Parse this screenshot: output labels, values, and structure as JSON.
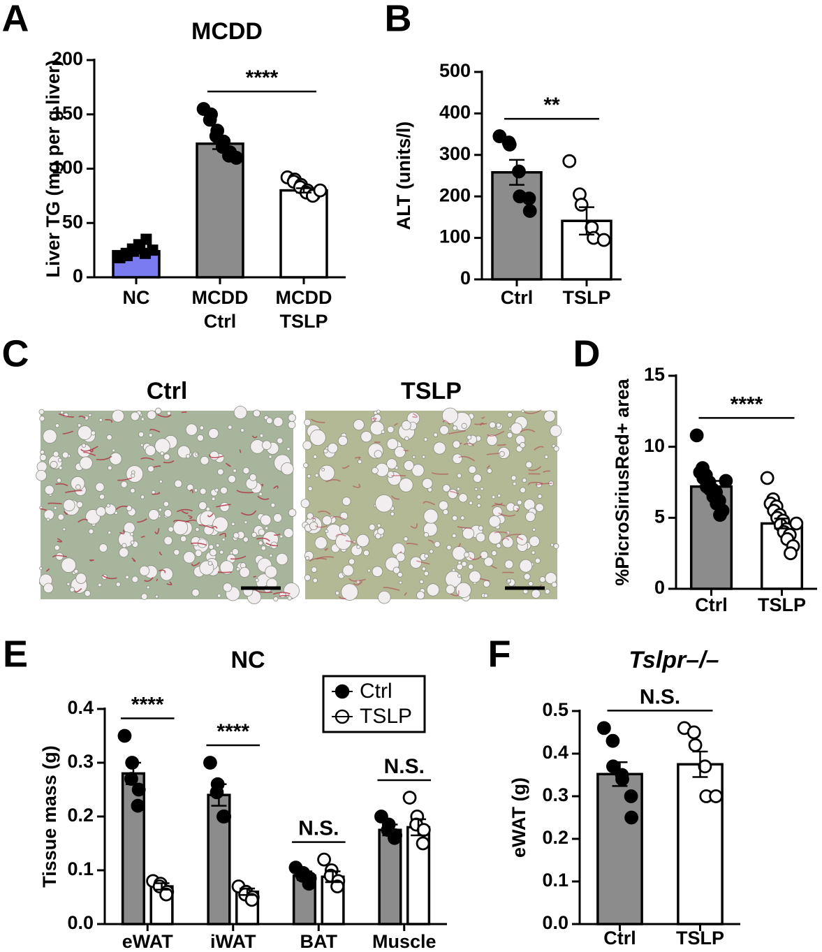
{
  "chart_data": [
    {
      "type": "bar",
      "panel_label": "A",
      "title": "MCDD",
      "y_label": "Liver TG (mg per g liver)",
      "categories": [
        "NC",
        "MCDD\nCtrl",
        "MCDD\nTSLP"
      ],
      "ylim": [
        0,
        200
      ],
      "yticks": [
        0,
        50,
        100,
        150,
        200
      ],
      "series": [
        {
          "colors": [
            "#7b7bf0",
            "#8c8c8c",
            "#ffffff"
          ],
          "markers": [
            "square",
            "filled",
            "open"
          ],
          "values": [
            24,
            123,
            80
          ],
          "errors": [
            2,
            5,
            2
          ],
          "points": [
            [
              18,
              20,
              22,
              24,
              26,
              28,
              30,
              35,
              22,
              25
            ],
            [
              155,
              150,
              145,
              135,
              130,
              125,
              120,
              115,
              112,
              110
            ],
            [
              92,
              90,
              88,
              85,
              83,
              80,
              78,
              76,
              75,
              80
            ]
          ]
        }
      ],
      "annotations": [
        {
          "text": "****",
          "categories": [
            1,
            2
          ]
        }
      ]
    },
    {
      "type": "bar",
      "panel_label": "B",
      "y_label": "ALT (units/l)",
      "categories": [
        "Ctrl",
        "TSLP"
      ],
      "ylim": [
        0,
        500
      ],
      "yticks": [
        0,
        100,
        200,
        300,
        400,
        500
      ],
      "series": [
        {
          "colors": [
            "#8c8c8c",
            "#ffffff"
          ],
          "markers": [
            "filled",
            "open"
          ],
          "values": [
            258,
            141
          ],
          "errors": [
            30,
            33
          ],
          "points": [
            [
              345,
              330,
              325,
              260,
              200,
              195,
              165
            ],
            [
              285,
              205,
              180,
              125,
              100,
              95
            ]
          ]
        }
      ],
      "annotations": [
        {
          "text": "**",
          "categories": [
            0,
            1
          ]
        }
      ]
    },
    {
      "type": "image",
      "panel_label": "C",
      "image_titles": [
        "Ctrl",
        "TSLP"
      ]
    },
    {
      "type": "bar",
      "panel_label": "D",
      "y_label": "%PicroSiriusRed+ area",
      "categories": [
        "Ctrl",
        "TSLP"
      ],
      "ylim": [
        0,
        15
      ],
      "yticks": [
        0,
        5,
        10,
        15
      ],
      "series": [
        {
          "colors": [
            "#8c8c8c",
            "#ffffff"
          ],
          "markers": [
            "filled",
            "open"
          ],
          "values": [
            7.2,
            4.6
          ],
          "errors": [
            0.4,
            0.35
          ],
          "points": [
            [
              10.8,
              8.5,
              8.2,
              8,
              7.8,
              7.5,
              7.2,
              7,
              7,
              6.8,
              6.5,
              6.2,
              6,
              5.5,
              5.2,
              7.6
            ],
            [
              7.8,
              6.3,
              6,
              5.8,
              5.5,
              5.2,
              5,
              4.8,
              4.5,
              4.2,
              4,
              3.8,
              3.5,
              3,
              2.5,
              4.6
            ]
          ]
        }
      ],
      "annotations": [
        {
          "text": "****",
          "categories": [
            0,
            1
          ]
        }
      ]
    },
    {
      "type": "bar",
      "panel_label": "E",
      "title": "NC",
      "y_label": "Tissue mass (g)",
      "categories": [
        "eWAT",
        "iWAT",
        "BAT",
        "Muscle"
      ],
      "ylim": [
        0,
        0.4
      ],
      "yticks": [
        {
          "value": 0,
          "label": "0.0"
        },
        0.1,
        0.2,
        0.3,
        0.4
      ],
      "legend": "top-right",
      "series": [
        {
          "name": "Ctrl",
          "color": "#8c8c8c",
          "marker": "filled",
          "values": [
            0.28,
            0.24,
            0.09,
            0.175
          ],
          "errors": [
            0.02,
            0.02,
            0.008,
            0.01
          ],
          "points": [
            [
              0.35,
              0.3,
              0.27,
              0.25,
              0.22
            ],
            [
              0.3,
              0.26,
              0.245,
              0.2,
              0.2
            ],
            [
              0.105,
              0.095,
              0.09,
              0.085,
              0.075
            ],
            [
              0.2,
              0.185,
              0.175,
              0.165,
              0.16
            ]
          ]
        },
        {
          "name": "TSLP",
          "color": "#ffffff",
          "marker": "open",
          "values": [
            0.07,
            0.06,
            0.088,
            0.18
          ],
          "errors": [
            0.006,
            0.006,
            0.01,
            0.015
          ],
          "points": [
            [
              0.08,
              0.075,
              0.07,
              0.06,
              0.055
            ],
            [
              0.07,
              0.06,
              0.055,
              0.05,
              0.045
            ],
            [
              0.12,
              0.1,
              0.09,
              0.08,
              0.07
            ],
            [
              0.235,
              0.2,
              0.185,
              0.175,
              0.15
            ]
          ]
        }
      ],
      "annotations": [
        {
          "text": "****",
          "categories": [
            0,
            0
          ]
        },
        {
          "text": "****",
          "categories": [
            1,
            1
          ]
        },
        {
          "text": "N.S.",
          "categories": [
            2,
            2
          ]
        },
        {
          "text": "N.S.",
          "categories": [
            3,
            3
          ]
        }
      ]
    },
    {
      "type": "bar",
      "panel_label": "F",
      "title": "Tslpr–/–",
      "y_label": "eWAT (g)",
      "categories": [
        "Ctrl",
        "TSLP"
      ],
      "ylim": [
        0,
        0.5
      ],
      "yticks": [
        {
          "value": 0,
          "label": "0.0"
        },
        0.1,
        0.2,
        0.3,
        0.4,
        {
          "value": 0.5,
          "label": "0.5"
        }
      ],
      "series": [
        {
          "colors": [
            "#8c8c8c",
            "#ffffff"
          ],
          "markers": [
            "filled",
            "open"
          ],
          "values": [
            0.352,
            0.375
          ],
          "errors": [
            0.028,
            0.03
          ],
          "points": [
            [
              0.46,
              0.43,
              0.37,
              0.35,
              0.34,
              0.3,
              0.25
            ],
            [
              0.46,
              0.45,
              0.42,
              0.37,
              0.3,
              0.3
            ]
          ]
        }
      ],
      "annotations": [
        {
          "text": "N.S.",
          "categories": [
            0,
            1
          ]
        }
      ]
    }
  ]
}
